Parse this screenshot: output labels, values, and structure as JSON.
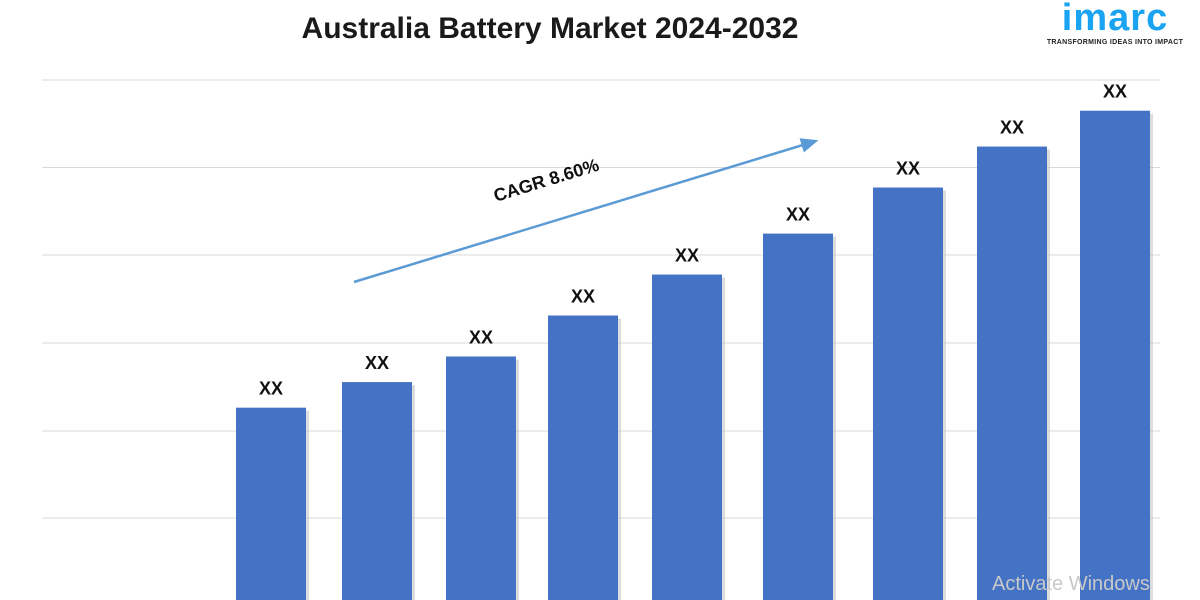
{
  "chart_data": {
    "type": "bar",
    "title": "Australia Battery Market 2024-2032",
    "values": [
      36,
      41,
      46,
      54,
      62,
      70,
      79,
      87,
      94
    ],
    "value_scale": "relative (100 = top gridline), no value axis printed",
    "data_labels": [
      "XX",
      "XX",
      "XX",
      "XX",
      "XX",
      "XX",
      "XX",
      "XX",
      "XX"
    ],
    "ylim": [
      0,
      100
    ],
    "grid": true,
    "bar_color": "#4472c4",
    "annotation": {
      "text": "CAGR 8.60%",
      "arrow_color": "#5b9bd5"
    }
  },
  "logo": {
    "word": "imarc",
    "tagline": "TRANSFORMING IDEAS INTO IMPACT",
    "color": "#1aa3f0"
  },
  "watermark": "Activate Windows"
}
